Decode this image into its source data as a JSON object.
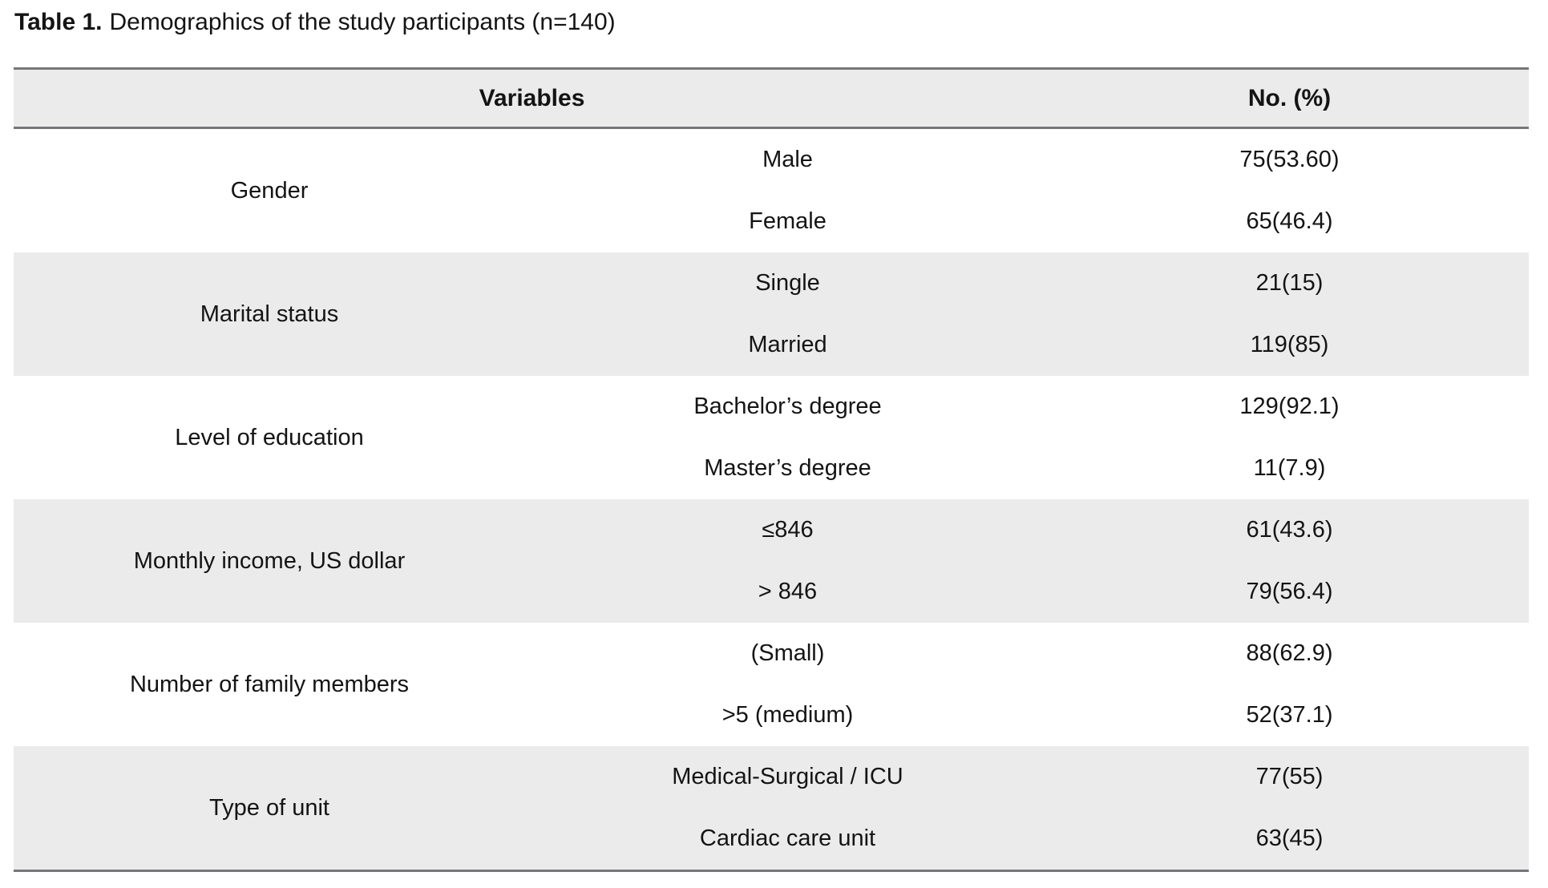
{
  "caption": {
    "label": "Table 1.",
    "text": "Demographics of the study participants (n=140)"
  },
  "table": {
    "headers": {
      "variables": "Variables",
      "count": "No. (%)"
    },
    "groups": [
      {
        "variable": "Gender",
        "rows": [
          {
            "category": "Male",
            "value": "75(53.60)"
          },
          {
            "category": "Female",
            "value": "65(46.4)"
          }
        ]
      },
      {
        "variable": "Marital status",
        "rows": [
          {
            "category": "Single",
            "value": "21(15)"
          },
          {
            "category": "Married",
            "value": "119(85)"
          }
        ]
      },
      {
        "variable": "Level of education",
        "rows": [
          {
            "category": "Bachelor’s degree",
            "value": "129(92.1)"
          },
          {
            "category": "Master’s degree",
            "value": "11(7.9)"
          }
        ]
      },
      {
        "variable": "Monthly income, US dollar",
        "rows": [
          {
            "category": "≤846",
            "value": "61(43.6)"
          },
          {
            "category": "> 846",
            "value": "79(56.4)"
          }
        ]
      },
      {
        "variable": "Number of family members",
        "rows": [
          {
            "category": "(Small)",
            "value": "88(62.9)"
          },
          {
            "category": ">5 (medium)",
            "value": "52(37.1)"
          }
        ]
      },
      {
        "variable": "Type of unit",
        "rows": [
          {
            "category": "Medical-Surgical / ICU",
            "value": "77(55)"
          },
          {
            "category": "Cardiac care unit",
            "value": "63(45)"
          }
        ]
      }
    ],
    "colors": {
      "band_background": "#ebebeb",
      "rule": "#76767a",
      "text": "#141414"
    }
  }
}
